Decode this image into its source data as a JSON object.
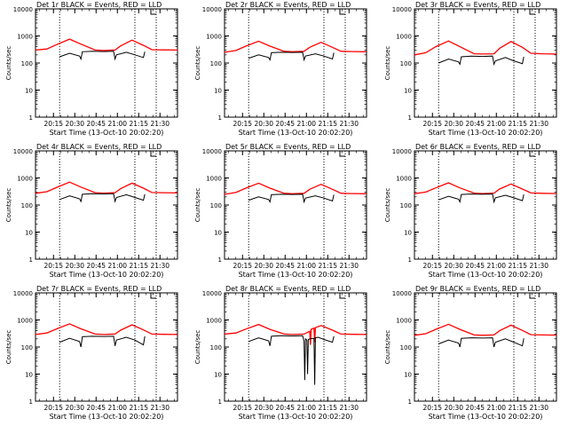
{
  "chart_data": [
    {
      "type": "line",
      "title": "Det 1r BLACK = Events, RED = LLD",
      "xlabel": "Start Time (13-Oct-10 20:02:20)",
      "ylabel": "Counts/sec",
      "y_scale": "log",
      "ylim": [
        1,
        10000
      ],
      "yticks": [
        "1",
        "10",
        "100",
        "1000",
        "10000"
      ],
      "xticks": [
        "20:15",
        "20:30",
        "20:45",
        "21:00",
        "21:15",
        "21:30"
      ],
      "xlim_minutes": [
        0,
        100
      ],
      "xtick_minutes": [
        12.67,
        27.67,
        42.67,
        57.67,
        72.67,
        87.67
      ],
      "vlines_dotted_minutes": [
        17,
        70,
        85
      ],
      "grid": false,
      "series": [
        {
          "color": "#ff0000",
          "x": [
            0,
            8,
            15,
            24,
            32,
            42,
            48,
            56,
            60,
            68,
            76,
            82,
            90,
            100
          ],
          "y": [
            300,
            330,
            480,
            760,
            500,
            300,
            290,
            300,
            430,
            700,
            450,
            310,
            305,
            300
          ]
        },
        {
          "color": "#000000",
          "x": [
            17,
            24,
            31,
            32,
            33,
            40,
            48,
            55,
            56,
            57,
            64,
            70,
            76,
            77
          ],
          "y": [
            170,
            230,
            180,
            140,
            260,
            270,
            265,
            270,
            140,
            200,
            250,
            200,
            160,
            260
          ]
        }
      ]
    },
    {
      "type": "line",
      "title": "Det 2r BLACK = Events, RED = LLD",
      "xlabel": "Start Time (13-Oct-10 20:02:20)",
      "ylabel": "Counts/sec",
      "y_scale": "log",
      "ylim": [
        1,
        10000
      ],
      "yticks": [
        "1",
        "10",
        "100",
        "1000",
        "10000"
      ],
      "xticks": [
        "20:15",
        "20:30",
        "20:45",
        "21:00",
        "21:15",
        "21:30"
      ],
      "xlim_minutes": [
        0,
        100
      ],
      "xtick_minutes": [
        12.67,
        27.67,
        42.67,
        57.67,
        72.67,
        87.67
      ],
      "vlines_dotted_minutes": [
        17,
        70,
        85
      ],
      "grid": false,
      "series": [
        {
          "color": "#ff0000",
          "x": [
            0,
            8,
            15,
            24,
            32,
            42,
            48,
            56,
            60,
            68,
            76,
            82,
            90,
            100
          ],
          "y": [
            250,
            290,
            420,
            640,
            420,
            270,
            260,
            270,
            380,
            580,
            380,
            270,
            265,
            260
          ]
        },
        {
          "color": "#000000",
          "x": [
            17,
            24,
            31,
            32,
            33,
            40,
            48,
            55,
            56,
            57,
            64,
            70,
            76,
            77
          ],
          "y": [
            150,
            200,
            160,
            130,
            240,
            250,
            245,
            250,
            130,
            180,
            220,
            180,
            140,
            240
          ]
        }
      ]
    },
    {
      "type": "line",
      "title": "Det 3r BLACK = Events, RED = LLD",
      "xlabel": "Start Time (13-Oct-10 20:02:20)",
      "ylabel": "Counts/sec",
      "y_scale": "log",
      "ylim": [
        1,
        10000
      ],
      "yticks": [
        "1",
        "10",
        "100",
        "1000",
        "10000"
      ],
      "xticks": [
        "20:15",
        "20:30",
        "20:45",
        "21:00",
        "21:15",
        "21:30"
      ],
      "xlim_minutes": [
        0,
        100
      ],
      "xtick_minutes": [
        12.67,
        27.67,
        42.67,
        57.67,
        72.67,
        87.67
      ],
      "vlines_dotted_minutes": [
        17,
        70,
        85
      ],
      "grid": false,
      "series": [
        {
          "color": "#ff0000",
          "x": [
            0,
            8,
            15,
            24,
            32,
            42,
            48,
            56,
            60,
            68,
            76,
            82,
            90,
            100
          ],
          "y": [
            200,
            240,
            400,
            650,
            400,
            220,
            215,
            220,
            350,
            620,
            380,
            230,
            220,
            215
          ]
        },
        {
          "color": "#000000",
          "x": [
            17,
            24,
            31,
            32,
            33,
            40,
            48,
            55,
            56,
            57,
            64,
            70,
            76,
            77
          ],
          "y": [
            100,
            140,
            110,
            90,
            170,
            180,
            175,
            180,
            90,
            120,
            160,
            120,
            95,
            170
          ]
        }
      ]
    },
    {
      "type": "line",
      "title": "Det 4r BLACK = Events, RED = LLD",
      "xlabel": "Start Time (13-Oct-10 20:02:20)",
      "ylabel": "Counts/sec",
      "y_scale": "log",
      "ylim": [
        1,
        10000
      ],
      "yticks": [
        "1",
        "10",
        "100",
        "1000",
        "10000"
      ],
      "xticks": [
        "20:15",
        "20:30",
        "20:45",
        "21:00",
        "21:15",
        "21:30"
      ],
      "xlim_minutes": [
        0,
        100
      ],
      "xtick_minutes": [
        12.67,
        27.67,
        42.67,
        57.67,
        72.67,
        87.67
      ],
      "vlines_dotted_minutes": [
        17,
        70,
        85
      ],
      "grid": false,
      "series": [
        {
          "color": "#ff0000",
          "x": [
            0,
            8,
            15,
            24,
            32,
            42,
            48,
            56,
            60,
            68,
            76,
            82,
            90,
            100
          ],
          "y": [
            270,
            310,
            450,
            700,
            460,
            285,
            275,
            285,
            400,
            640,
            420,
            290,
            285,
            280
          ]
        },
        {
          "color": "#000000",
          "x": [
            17,
            24,
            31,
            32,
            33,
            40,
            48,
            55,
            56,
            57,
            64,
            70,
            76,
            77
          ],
          "y": [
            160,
            220,
            170,
            135,
            250,
            260,
            255,
            260,
            135,
            190,
            240,
            190,
            150,
            250
          ]
        }
      ]
    },
    {
      "type": "line",
      "title": "Det 5r BLACK = Events, RED = LLD",
      "xlabel": "Start Time (13-Oct-10 20:02:20)",
      "ylabel": "Counts/sec",
      "y_scale": "log",
      "ylim": [
        1,
        10000
      ],
      "yticks": [
        "1",
        "10",
        "100",
        "1000",
        "10000"
      ],
      "xticks": [
        "20:15",
        "20:30",
        "20:45",
        "21:00",
        "21:15",
        "21:30"
      ],
      "xlim_minutes": [
        0,
        100
      ],
      "xtick_minutes": [
        12.67,
        27.67,
        42.67,
        57.67,
        72.67,
        87.67
      ],
      "vlines_dotted_minutes": [
        17,
        70,
        85
      ],
      "grid": false,
      "series": [
        {
          "color": "#ff0000",
          "x": [
            0,
            8,
            15,
            24,
            32,
            42,
            48,
            56,
            60,
            68,
            76,
            82,
            90,
            100
          ],
          "y": [
            250,
            290,
            420,
            640,
            420,
            270,
            260,
            270,
            380,
            580,
            380,
            270,
            265,
            260
          ]
        },
        {
          "color": "#000000",
          "x": [
            17,
            24,
            31,
            32,
            33,
            40,
            48,
            55,
            56,
            57,
            64,
            70,
            76,
            77
          ],
          "y": [
            150,
            200,
            160,
            130,
            240,
            250,
            245,
            250,
            130,
            180,
            220,
            180,
            140,
            240
          ]
        }
      ]
    },
    {
      "type": "line",
      "title": "Det 6r BLACK = Events, RED = LLD",
      "xlabel": "Start Time (13-Oct-10 20:02:20)",
      "ylabel": "Counts/sec",
      "y_scale": "log",
      "ylim": [
        1,
        10000
      ],
      "yticks": [
        "1",
        "10",
        "100",
        "1000",
        "10000"
      ],
      "xticks": [
        "20:15",
        "20:30",
        "20:45",
        "21:00",
        "21:15",
        "21:30"
      ],
      "xlim_minutes": [
        0,
        100
      ],
      "xtick_minutes": [
        12.67,
        27.67,
        42.67,
        57.67,
        72.67,
        87.67
      ],
      "vlines_dotted_minutes": [
        17,
        70,
        85
      ],
      "grid": false,
      "series": [
        {
          "color": "#ff0000",
          "x": [
            0,
            8,
            15,
            24,
            32,
            42,
            48,
            56,
            60,
            68,
            76,
            82,
            90,
            100
          ],
          "y": [
            260,
            300,
            430,
            660,
            430,
            275,
            265,
            275,
            390,
            600,
            390,
            280,
            270,
            265
          ]
        },
        {
          "color": "#000000",
          "x": [
            17,
            24,
            31,
            32,
            33,
            40,
            48,
            55,
            56,
            57,
            64,
            70,
            76,
            77
          ],
          "y": [
            155,
            210,
            165,
            130,
            245,
            255,
            250,
            255,
            130,
            185,
            230,
            185,
            145,
            245
          ]
        }
      ]
    },
    {
      "type": "line",
      "title": "Det 7r BLACK = Events, RED = LLD",
      "xlabel": "Start Time (13-Oct-10 20:02:20)",
      "ylabel": "Counts/sec",
      "y_scale": "log",
      "ylim": [
        1,
        10000
      ],
      "yticks": [
        "1",
        "10",
        "100",
        "1000",
        "10000"
      ],
      "xticks": [
        "20:15",
        "20:30",
        "20:45",
        "21:00",
        "21:15",
        "21:30"
      ],
      "xlim_minutes": [
        0,
        100
      ],
      "xtick_minutes": [
        12.67,
        27.67,
        42.67,
        57.67,
        72.67,
        87.67
      ],
      "vlines_dotted_minutes": [
        17,
        70,
        85
      ],
      "grid": false,
      "series": [
        {
          "color": "#ff0000",
          "x": [
            0,
            8,
            15,
            24,
            32,
            42,
            48,
            56,
            60,
            68,
            76,
            82,
            90,
            100
          ],
          "y": [
            290,
            330,
            470,
            720,
            470,
            300,
            290,
            300,
            420,
            660,
            430,
            300,
            295,
            290
          ]
        },
        {
          "color": "#000000",
          "x": [
            17,
            24,
            31,
            32,
            33,
            40,
            48,
            55,
            56,
            57,
            64,
            70,
            76,
            77
          ],
          "y": [
            150,
            210,
            160,
            100,
            240,
            250,
            245,
            250,
            110,
            180,
            230,
            180,
            120,
            250
          ]
        }
      ]
    },
    {
      "type": "line",
      "title": "Det 8r BLACK = Events, RED = LLD",
      "xlabel": "Start Time (13-Oct-10 20:02:20)",
      "ylabel": "Counts/sec",
      "y_scale": "log",
      "ylim": [
        1,
        10000
      ],
      "yticks": [
        "1",
        "10",
        "100",
        "1000",
        "10000"
      ],
      "xticks": [
        "20:15",
        "20:30",
        "20:45",
        "21:00",
        "21:15",
        "21:30"
      ],
      "xlim_minutes": [
        0,
        100
      ],
      "xtick_minutes": [
        12.67,
        27.67,
        42.67,
        57.67,
        72.67,
        87.67
      ],
      "vlines_dotted_minutes": [
        17,
        70,
        85
      ],
      "grid": false,
      "series": [
        {
          "color": "#ff0000",
          "x": [
            0,
            8,
            15,
            24,
            32,
            42,
            48,
            56,
            60,
            60.5,
            61,
            63,
            63.5,
            64,
            68,
            76,
            82,
            90,
            100
          ],
          "y": [
            300,
            330,
            460,
            680,
            450,
            300,
            290,
            300,
            380,
            120,
            450,
            500,
            150,
            520,
            620,
            420,
            300,
            295,
            290
          ]
        },
        {
          "color": "#000000",
          "x": [
            17,
            24,
            31,
            32,
            33,
            40,
            48,
            55,
            56,
            56.5,
            57,
            58,
            58.5,
            59,
            60,
            63,
            63.5,
            64,
            66,
            70,
            76,
            77
          ],
          "y": [
            160,
            220,
            170,
            110,
            250,
            260,
            255,
            260,
            160,
            6,
            200,
            180,
            10,
            190,
            200,
            210,
            4,
            220,
            230,
            190,
            150,
            250
          ]
        }
      ]
    },
    {
      "type": "line",
      "title": "Det 9r BLACK = Events, RED = LLD",
      "xlabel": "Start Time (13-Oct-10 20:02:20)",
      "ylabel": "Counts/sec",
      "y_scale": "log",
      "ylim": [
        1,
        10000
      ],
      "yticks": [
        "1",
        "10",
        "100",
        "1000",
        "10000"
      ],
      "xticks": [
        "20:15",
        "20:30",
        "20:45",
        "21:00",
        "21:15",
        "21:30"
      ],
      "xlim_minutes": [
        0,
        100
      ],
      "xtick_minutes": [
        12.67,
        27.67,
        42.67,
        57.67,
        72.67,
        87.67
      ],
      "vlines_dotted_minutes": [
        17,
        70,
        85
      ],
      "grid": false,
      "series": [
        {
          "color": "#ff0000",
          "x": [
            0,
            8,
            15,
            24,
            32,
            42,
            48,
            56,
            60,
            68,
            76,
            82,
            90,
            100
          ],
          "y": [
            270,
            310,
            450,
            690,
            450,
            280,
            270,
            280,
            400,
            640,
            410,
            285,
            280,
            275
          ]
        },
        {
          "color": "#000000",
          "x": [
            17,
            24,
            31,
            32,
            33,
            40,
            48,
            55,
            56,
            57,
            64,
            70,
            76,
            77
          ],
          "y": [
            130,
            180,
            140,
            100,
            210,
            220,
            215,
            220,
            100,
            150,
            200,
            150,
            110,
            210
          ]
        }
      ]
    }
  ]
}
